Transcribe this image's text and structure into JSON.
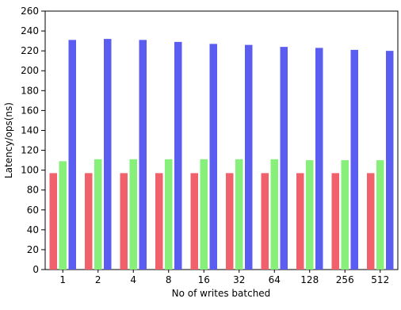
{
  "chart_data": {
    "type": "bar",
    "title": "",
    "xlabel": "No of writes batched",
    "ylabel": "Latency/ops(ns)",
    "categories": [
      "1",
      "2",
      "4",
      "8",
      "16",
      "32",
      "64",
      "128",
      "256",
      "512"
    ],
    "ylim": [
      0,
      260
    ],
    "yticks": [
      0,
      20,
      40,
      60,
      80,
      100,
      120,
      140,
      160,
      180,
      200,
      220,
      240,
      260
    ],
    "grid": false,
    "legend": "none",
    "series": [
      {
        "color": "#f0616b",
        "values": [
          97,
          97,
          97,
          97,
          97,
          97,
          97,
          97,
          97,
          97
        ]
      },
      {
        "color": "#86f07a",
        "values": [
          109,
          111,
          111,
          111,
          111,
          111,
          111,
          110,
          110,
          110
        ]
      },
      {
        "color": "#5b5cf0",
        "values": [
          231,
          232,
          231,
          229,
          227,
          226,
          224,
          223,
          221,
          220
        ]
      }
    ]
  }
}
